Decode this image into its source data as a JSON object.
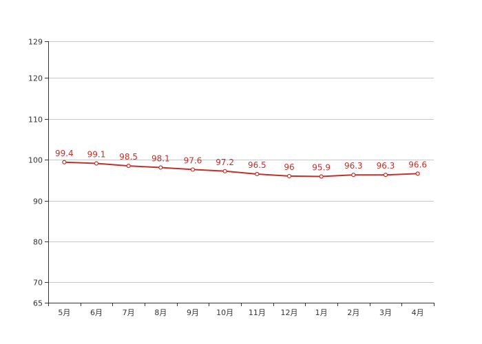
{
  "chart_data": {
    "type": "line",
    "categories": [
      "5月",
      "6月",
      "7月",
      "8月",
      "9月",
      "10月",
      "11月",
      "12月",
      "1月",
      "2月",
      "3月",
      "4月"
    ],
    "series": [
      {
        "values": [
          99.4,
          99.1,
          98.5,
          98.1,
          97.6,
          97.2,
          96.5,
          96,
          95.9,
          96.3,
          96.3,
          96.6
        ],
        "color": "#c0302a",
        "labels": [
          "99.4",
          "99.1",
          "98.5",
          "98.1",
          "97.6",
          "97.2",
          "96.5",
          "96",
          "95.9",
          "96.3",
          "96.3",
          "96.6"
        ]
      }
    ],
    "title": "",
    "xlabel": "",
    "ylabel": "",
    "ylim": [
      65,
      129
    ],
    "yticks": [
      65,
      70,
      80,
      90,
      100,
      110,
      120,
      129
    ],
    "grid": true,
    "legend": "none"
  }
}
